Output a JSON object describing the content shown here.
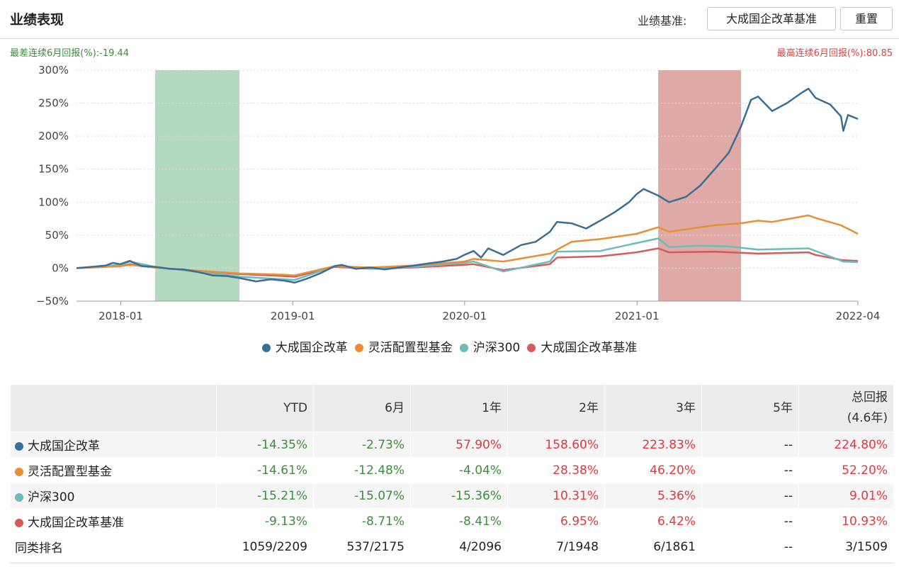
{
  "header": {
    "title": "业绩表现",
    "benchmark_label": "业绩基准:",
    "benchmark_value": "大成国企改革基准",
    "reset_label": "重置"
  },
  "summary": {
    "worst_6m": "最差连续6月回报(%):-19.44",
    "best_6m": "最高连续6月回报(%):80.85"
  },
  "colors": {
    "fund": "#3a6e96",
    "category": "#e88f34",
    "hs300": "#6cbcbd",
    "benchmark": "#d65a5a",
    "worst_band": "#a6d4b4",
    "best_band": "#d99a96",
    "positive": "#e6363f",
    "negative": "#3a8f3a"
  },
  "chart_data": {
    "type": "line",
    "title": "",
    "xlabel": "",
    "ylabel": "",
    "x_ticks": [
      "2018-01",
      "2019-01",
      "2020-01",
      "2021-01",
      "2022-04"
    ],
    "y_ticks": [
      "300%",
      "250%",
      "200%",
      "150%",
      "100%",
      "50%",
      "0%",
      "−50%"
    ],
    "ylim": [
      -50,
      300
    ],
    "xlim": [
      "2017-09-29",
      "2022-04-15"
    ],
    "grid": true,
    "legend_position": "bottom",
    "shaded_periods": [
      {
        "label": "最差连续6月",
        "start": "2018-03-15",
        "end": "2018-09-10",
        "color": "#a6d4b4"
      },
      {
        "label": "最高连续6月",
        "start": "2021-02-15",
        "end": "2021-08-10",
        "color": "#d99a96"
      }
    ],
    "series": [
      {
        "name": "大成国企改革",
        "color": "#3a6e96",
        "points": [
          [
            "2017-09-29",
            0
          ],
          [
            "2017-10-31",
            2
          ],
          [
            "2017-11-30",
            4
          ],
          [
            "2017-12-15",
            8
          ],
          [
            "2017-12-31",
            6
          ],
          [
            "2018-01-20",
            11
          ],
          [
            "2018-02-15",
            3
          ],
          [
            "2018-03-15",
            2
          ],
          [
            "2018-04-15",
            -1
          ],
          [
            "2018-05-15",
            -2
          ],
          [
            "2018-06-15",
            -6
          ],
          [
            "2018-07-15",
            -11
          ],
          [
            "2018-08-15",
            -12
          ],
          [
            "2018-09-10",
            -15
          ],
          [
            "2018-10-15",
            -20
          ],
          [
            "2018-11-15",
            -17
          ],
          [
            "2018-12-15",
            -19
          ],
          [
            "2019-01-05",
            -22
          ],
          [
            "2019-01-31",
            -16
          ],
          [
            "2019-02-28",
            -8
          ],
          [
            "2019-03-31",
            3
          ],
          [
            "2019-04-15",
            5
          ],
          [
            "2019-05-15",
            -1
          ],
          [
            "2019-06-15",
            1
          ],
          [
            "2019-07-15",
            -2
          ],
          [
            "2019-08-15",
            1
          ],
          [
            "2019-09-15",
            4
          ],
          [
            "2019-10-15",
            7
          ],
          [
            "2019-11-15",
            10
          ],
          [
            "2019-12-15",
            14
          ],
          [
            "2019-12-31",
            20
          ],
          [
            "2020-01-20",
            26
          ],
          [
            "2020-02-05",
            16
          ],
          [
            "2020-02-20",
            30
          ],
          [
            "2020-03-23",
            20
          ],
          [
            "2020-04-30",
            35
          ],
          [
            "2020-05-31",
            40
          ],
          [
            "2020-06-30",
            55
          ],
          [
            "2020-07-15",
            70
          ],
          [
            "2020-08-15",
            68
          ],
          [
            "2020-09-15",
            60
          ],
          [
            "2020-10-15",
            72
          ],
          [
            "2020-11-15",
            85
          ],
          [
            "2020-12-15",
            100
          ],
          [
            "2020-12-31",
            112
          ],
          [
            "2021-01-15",
            120
          ],
          [
            "2021-02-15",
            110
          ],
          [
            "2021-03-10",
            100
          ],
          [
            "2021-04-15",
            108
          ],
          [
            "2021-05-15",
            125
          ],
          [
            "2021-06-15",
            150
          ],
          [
            "2021-07-15",
            175
          ],
          [
            "2021-08-10",
            215
          ],
          [
            "2021-08-31",
            255
          ],
          [
            "2021-09-15",
            260
          ],
          [
            "2021-10-15",
            238
          ],
          [
            "2021-11-15",
            250
          ],
          [
            "2021-12-15",
            265
          ],
          [
            "2021-12-31",
            272
          ],
          [
            "2022-01-15",
            258
          ],
          [
            "2022-02-15",
            248
          ],
          [
            "2022-03-10",
            230
          ],
          [
            "2022-03-15",
            208
          ],
          [
            "2022-03-25",
            232
          ],
          [
            "2022-04-15",
            226
          ]
        ]
      },
      {
        "name": "灵活配置型基金",
        "color": "#e88f34",
        "points": [
          [
            "2017-09-29",
            0
          ],
          [
            "2017-12-31",
            3
          ],
          [
            "2018-01-20",
            5
          ],
          [
            "2018-03-15",
            1
          ],
          [
            "2018-06-15",
            -4
          ],
          [
            "2018-09-10",
            -8
          ],
          [
            "2018-12-15",
            -10
          ],
          [
            "2019-01-05",
            -11
          ],
          [
            "2019-03-31",
            3
          ],
          [
            "2019-06-15",
            1
          ],
          [
            "2019-09-15",
            4
          ],
          [
            "2019-12-31",
            10
          ],
          [
            "2020-01-20",
            14
          ],
          [
            "2020-03-23",
            10
          ],
          [
            "2020-06-30",
            22
          ],
          [
            "2020-08-15",
            40
          ],
          [
            "2020-10-15",
            44
          ],
          [
            "2020-12-31",
            52
          ],
          [
            "2021-02-15",
            62
          ],
          [
            "2021-03-10",
            55
          ],
          [
            "2021-05-15",
            62
          ],
          [
            "2021-06-15",
            65
          ],
          [
            "2021-08-10",
            68
          ],
          [
            "2021-09-15",
            72
          ],
          [
            "2021-10-15",
            70
          ],
          [
            "2021-12-31",
            80
          ],
          [
            "2022-01-15",
            76
          ],
          [
            "2022-03-10",
            65
          ],
          [
            "2022-04-15",
            52
          ]
        ]
      },
      {
        "name": "沪深300",
        "color": "#6cbcbd",
        "points": [
          [
            "2017-09-29",
            0
          ],
          [
            "2017-12-31",
            5
          ],
          [
            "2018-01-20",
            10
          ],
          [
            "2018-03-15",
            2
          ],
          [
            "2018-06-15",
            -6
          ],
          [
            "2018-09-10",
            -13
          ],
          [
            "2018-12-15",
            -17
          ],
          [
            "2019-01-05",
            -18
          ],
          [
            "2019-03-31",
            3
          ],
          [
            "2019-06-15",
            -1
          ],
          [
            "2019-09-15",
            2
          ],
          [
            "2019-12-31",
            8
          ],
          [
            "2020-01-20",
            10
          ],
          [
            "2020-03-23",
            -5
          ],
          [
            "2020-06-30",
            10
          ],
          [
            "2020-07-15",
            25
          ],
          [
            "2020-10-15",
            26
          ],
          [
            "2020-12-31",
            38
          ],
          [
            "2021-02-15",
            45
          ],
          [
            "2021-03-10",
            32
          ],
          [
            "2021-05-15",
            34
          ],
          [
            "2021-07-15",
            33
          ],
          [
            "2021-09-15",
            28
          ],
          [
            "2021-12-31",
            30
          ],
          [
            "2022-01-15",
            26
          ],
          [
            "2022-03-15",
            10
          ],
          [
            "2022-04-15",
            9
          ]
        ]
      },
      {
        "name": "大成国企改革基准",
        "color": "#d65a5a",
        "points": [
          [
            "2017-09-29",
            0
          ],
          [
            "2017-12-31",
            3
          ],
          [
            "2018-01-20",
            6
          ],
          [
            "2018-03-15",
            1
          ],
          [
            "2018-06-15",
            -4
          ],
          [
            "2018-09-10",
            -9
          ],
          [
            "2018-12-15",
            -12
          ],
          [
            "2019-01-05",
            -13
          ],
          [
            "2019-03-31",
            2
          ],
          [
            "2019-06-15",
            -1
          ],
          [
            "2019-09-15",
            1
          ],
          [
            "2019-12-31",
            5
          ],
          [
            "2020-01-20",
            6
          ],
          [
            "2020-03-23",
            -3
          ],
          [
            "2020-06-30",
            6
          ],
          [
            "2020-07-15",
            16
          ],
          [
            "2020-10-15",
            18
          ],
          [
            "2020-12-31",
            24
          ],
          [
            "2021-02-15",
            30
          ],
          [
            "2021-03-10",
            24
          ],
          [
            "2021-06-15",
            25
          ],
          [
            "2021-09-15",
            22
          ],
          [
            "2021-12-31",
            24
          ],
          [
            "2022-01-15",
            20
          ],
          [
            "2022-03-15",
            12
          ],
          [
            "2022-04-15",
            11
          ]
        ]
      }
    ]
  },
  "legend": [
    {
      "label": "大成国企改革",
      "color": "#3a6e96"
    },
    {
      "label": "灵活配置型基金",
      "color": "#e88f34"
    },
    {
      "label": "沪深300",
      "color": "#6cbcbd"
    },
    {
      "label": "大成国企改革基准",
      "color": "#d65a5a"
    }
  ],
  "table": {
    "headers": [
      "",
      "YTD",
      "6月",
      "1年",
      "2年",
      "3年",
      "5年",
      "总回报",
      "(4.6年)"
    ],
    "rows": [
      {
        "name": "大成国企改革",
        "color": "#3a6e96",
        "cells": [
          "-14.35%",
          "-2.73%",
          "57.90%",
          "158.60%",
          "223.83%",
          "--",
          "224.80%"
        ]
      },
      {
        "name": "灵活配置型基金",
        "color": "#e88f34",
        "cells": [
          "-14.61%",
          "-12.48%",
          "-4.04%",
          "28.38%",
          "46.20%",
          "--",
          "52.20%"
        ]
      },
      {
        "name": "沪深300",
        "color": "#6cbcbd",
        "cells": [
          "-15.21%",
          "-15.07%",
          "-15.36%",
          "10.31%",
          "5.36%",
          "--",
          "9.01%"
        ]
      },
      {
        "name": "大成国企改革基准",
        "color": "#d65a5a",
        "cells": [
          "-9.13%",
          "-8.71%",
          "-8.41%",
          "6.95%",
          "6.42%",
          "--",
          "10.93%"
        ]
      }
    ],
    "rank_row": {
      "name": "同类排名",
      "cells": [
        "1059/2209",
        "537/2175",
        "4/2096",
        "7/1948",
        "6/1861",
        "--",
        "3/1509"
      ]
    }
  }
}
